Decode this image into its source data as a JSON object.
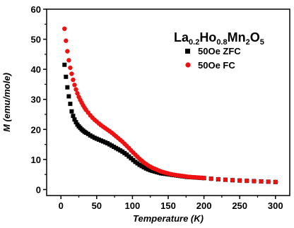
{
  "chart_data": {
    "type": "scatter",
    "title_parts": [
      {
        "text": "La",
        "sub": false
      },
      {
        "text": "0.2",
        "sub": true
      },
      {
        "text": "Ho",
        "sub": false
      },
      {
        "text": "0.8",
        "sub": true
      },
      {
        "text": "Mn",
        "sub": false
      },
      {
        "text": "2",
        "sub": true
      },
      {
        "text": "O",
        "sub": false
      },
      {
        "text": "5",
        "sub": true
      }
    ],
    "xlabel": "Temperature (K)",
    "ylabel": "M (emu/mole)",
    "xlim": [
      -20,
      320
    ],
    "ylim": [
      -2,
      60
    ],
    "xticks": [
      0,
      50,
      100,
      150,
      200,
      250,
      300
    ],
    "yticks": [
      0,
      10,
      20,
      30,
      40,
      50,
      60
    ],
    "legend_position": "top-right",
    "series": [
      {
        "name": "50Oe ZFC",
        "color": "#000000",
        "marker": "square",
        "x": [
          5,
          7,
          9,
          11,
          13,
          15,
          17,
          19,
          21,
          23,
          25,
          27,
          29,
          31,
          33,
          35,
          38,
          41,
          44,
          47,
          50,
          53,
          56,
          59,
          62,
          65,
          68,
          71,
          74,
          77,
          80,
          83,
          86,
          89,
          92,
          95,
          98,
          101,
          104,
          107,
          110,
          113,
          116,
          119,
          122,
          125,
          128,
          131,
          134,
          137,
          140,
          143,
          146,
          149,
          152,
          155,
          158,
          161,
          164,
          167,
          170,
          173,
          176,
          179,
          182,
          185,
          188,
          191,
          194,
          197,
          200,
          210,
          220,
          230,
          240,
          250,
          260,
          270,
          280,
          290,
          300
        ],
        "y": [
          41.5,
          37.5,
          34.0,
          31.0,
          28.5,
          26.0,
          24.5,
          23.3,
          22.4,
          21.6,
          21.0,
          20.5,
          20.0,
          19.6,
          19.2,
          18.9,
          18.5,
          18.0,
          17.6,
          17.2,
          16.9,
          16.6,
          16.3,
          16.0,
          15.7,
          15.4,
          15.0,
          14.6,
          14.2,
          13.8,
          13.4,
          13.0,
          12.6,
          12.1,
          11.6,
          11.0,
          10.4,
          9.8,
          9.2,
          8.7,
          8.2,
          7.8,
          7.4,
          7.0,
          6.7,
          6.4,
          6.2,
          6.0,
          5.8,
          5.6,
          5.4,
          5.3,
          5.2,
          5.1,
          5.0,
          4.9,
          4.8,
          4.7,
          4.6,
          4.5,
          4.4,
          4.3,
          4.2,
          4.15,
          4.1,
          4.05,
          4.0,
          3.95,
          3.9,
          3.85,
          3.8,
          3.6,
          3.4,
          3.25,
          3.1,
          3.0,
          2.9,
          2.8,
          2.7,
          2.6,
          2.5
        ]
      },
      {
        "name": "50Oe FC",
        "color": "#ee1111",
        "marker": "circle",
        "x": [
          5,
          7,
          9,
          11,
          13,
          15,
          17,
          19,
          21,
          23,
          25,
          27,
          29,
          31,
          33,
          35,
          38,
          41,
          44,
          47,
          50,
          53,
          56,
          59,
          62,
          65,
          68,
          71,
          74,
          77,
          80,
          83,
          86,
          89,
          92,
          95,
          98,
          101,
          104,
          107,
          110,
          113,
          116,
          119,
          122,
          125,
          128,
          131,
          134,
          137,
          140,
          143,
          146,
          149,
          152,
          155,
          158,
          161,
          164,
          167,
          170,
          173,
          176,
          179,
          182,
          185,
          188,
          191,
          194,
          197,
          200,
          210,
          220,
          230,
          240,
          250,
          260,
          270,
          280,
          290,
          300
        ],
        "y": [
          53.5,
          49.5,
          46.0,
          43.0,
          40.5,
          38.5,
          36.5,
          34.8,
          33.3,
          32.0,
          30.8,
          29.8,
          28.9,
          28.0,
          27.2,
          26.5,
          25.6,
          24.7,
          23.9,
          23.2,
          22.6,
          22.0,
          21.4,
          20.9,
          20.4,
          19.9,
          19.4,
          18.9,
          18.3,
          17.7,
          17.1,
          16.5,
          15.9,
          15.2,
          14.5,
          13.8,
          13.0,
          12.3,
          11.6,
          10.9,
          10.2,
          9.6,
          9.0,
          8.5,
          8.0,
          7.6,
          7.2,
          6.9,
          6.6,
          6.3,
          6.0,
          5.8,
          5.6,
          5.4,
          5.2,
          5.05,
          4.9,
          4.8,
          4.7,
          4.6,
          4.5,
          4.4,
          4.3,
          4.2,
          4.15,
          4.1,
          4.05,
          4.0,
          3.95,
          3.9,
          3.85,
          3.6,
          3.45,
          3.3,
          3.15,
          3.0,
          2.9,
          2.8,
          2.7,
          2.6,
          2.5
        ]
      }
    ]
  }
}
